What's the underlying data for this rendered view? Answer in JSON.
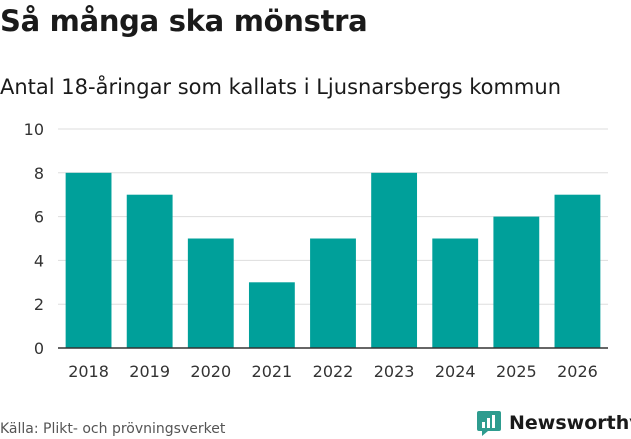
{
  "colors": {
    "bar": "#00a09a",
    "grid": "#dddddd",
    "axis": "#333333",
    "brand": "#2e9c8f"
  },
  "chart_data": {
    "type": "bar",
    "title": "Så många ska mönstra",
    "subtitle": "Antal 18-åringar som kallats i Ljusnarsbergs kommun",
    "categories": [
      "2018",
      "2019",
      "2020",
      "2021",
      "2022",
      "2023",
      "2024",
      "2025",
      "2026"
    ],
    "values": [
      8,
      7,
      5,
      3,
      5,
      8,
      5,
      6,
      7
    ],
    "yticks": [
      0,
      2,
      4,
      6,
      8,
      10
    ],
    "ylim": [
      0,
      10
    ],
    "xlabel": "",
    "ylabel": "",
    "grid": true
  },
  "footer": {
    "source": "Källa: Plikt- och prövningsverket",
    "brand": "Newsworthy"
  },
  "icons": {
    "brand_logo": "newsworthy-logo-icon"
  }
}
